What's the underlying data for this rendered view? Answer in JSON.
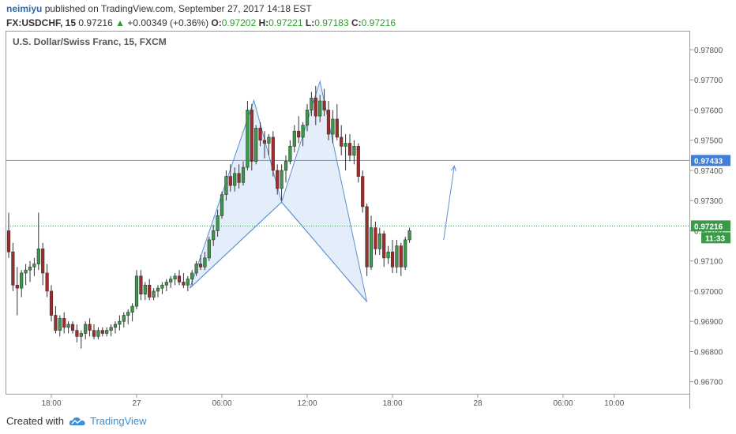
{
  "header": {
    "author": "neimiyu",
    "published_text": "published on TradingView.com, September 27, 2017 14:18 EST",
    "symbol": "FX:USDCHF, 15",
    "last_price": "0.97216",
    "change": "+0.00349 (+0.36%)",
    "o_label": "O:",
    "o_value": "0.97202",
    "h_label": "H:",
    "h_value": "0.97221",
    "l_label": "L:",
    "l_value": "0.97183",
    "c_label": "C:",
    "c_value": "0.97216"
  },
  "footer": {
    "created_with": "Created with",
    "brand": "TradingView"
  },
  "colors": {
    "up": "#3a9a4a",
    "down": "#a52a2a",
    "pattern_fill": "#dbe8f8",
    "pattern_stroke": "#5b8fd4",
    "level_line": "#5b8fd4",
    "price_badge": "#3a9a4a",
    "level_badge": "#3f7fd9"
  },
  "chart_data": {
    "type": "candlestick",
    "title": "U.S. Dollar/Swiss Franc, 15, FXCM",
    "ylim": [
      0.9666,
      0.9786
    ],
    "y_ticks": [
      "0.97800",
      "0.97700",
      "0.97600",
      "0.97500",
      "0.97400",
      "0.97300",
      "0.97200",
      "0.97100",
      "0.97000",
      "0.96900",
      "0.96800",
      "0.96700"
    ],
    "x_ticks": [
      "18:00",
      "27",
      "06:00",
      "12:00",
      "18:00",
      "28",
      "06:00",
      "10:00"
    ],
    "x_tick_bar_index": [
      10,
      30,
      50,
      70,
      90,
      110,
      130,
      142
    ],
    "resistance_level": 0.97433,
    "resistance_label": "0.97433",
    "last_price": 0.97216,
    "last_price_label": "0.97216",
    "countdown": "11:33",
    "harmonic_pattern": [
      {
        "bar": 42.5,
        "price": 0.9701
      },
      {
        "bar": 57.5,
        "price": 0.97632
      },
      {
        "bar": 64,
        "price": 0.97295
      },
      {
        "bar": 73,
        "price": 0.97695
      },
      {
        "bar": 84,
        "price": 0.96965
      }
    ],
    "projection_arrow": {
      "from": {
        "bar": 102,
        "price": 0.9717
      },
      "to": {
        "bar": 104.5,
        "price": 0.97415
      }
    },
    "candles": [
      [
        0.972,
        0.9726,
        0.9711,
        0.9713
      ],
      [
        0.9713,
        0.9716,
        0.97,
        0.9702
      ],
      [
        0.9702,
        0.9708,
        0.9692,
        0.9701
      ],
      [
        0.9701,
        0.9707,
        0.9698,
        0.9706
      ],
      [
        0.9706,
        0.9709,
        0.9702,
        0.9707
      ],
      [
        0.9707,
        0.971,
        0.9703,
        0.9708
      ],
      [
        0.9708,
        0.9711,
        0.9705,
        0.9709
      ],
      [
        0.9709,
        0.9726,
        0.9707,
        0.9714
      ],
      [
        0.9714,
        0.9716,
        0.9702,
        0.9706
      ],
      [
        0.9706,
        0.9709,
        0.9698,
        0.97
      ],
      [
        0.97,
        0.9702,
        0.969,
        0.9692
      ],
      [
        0.9692,
        0.9695,
        0.9686,
        0.9687
      ],
      [
        0.9687,
        0.9692,
        0.9685,
        0.9691
      ],
      [
        0.9691,
        0.9693,
        0.9686,
        0.9688
      ],
      [
        0.9688,
        0.969,
        0.9686,
        0.9689
      ],
      [
        0.9689,
        0.969,
        0.9686,
        0.9687
      ],
      [
        0.9687,
        0.9689,
        0.9683,
        0.9685
      ],
      [
        0.9685,
        0.9687,
        0.9681,
        0.9686
      ],
      [
        0.9686,
        0.969,
        0.9684,
        0.9689
      ],
      [
        0.9689,
        0.9691,
        0.9685,
        0.9687
      ],
      [
        0.9687,
        0.9689,
        0.9684,
        0.9685
      ],
      [
        0.9685,
        0.9688,
        0.9684,
        0.9687
      ],
      [
        0.9687,
        0.9688,
        0.9685,
        0.9686
      ],
      [
        0.9686,
        0.9688,
        0.9685,
        0.9687
      ],
      [
        0.9687,
        0.9689,
        0.9685,
        0.9688
      ],
      [
        0.9688,
        0.969,
        0.9686,
        0.9689
      ],
      [
        0.9689,
        0.9692,
        0.9687,
        0.969
      ],
      [
        0.969,
        0.9693,
        0.9688,
        0.9692
      ],
      [
        0.9692,
        0.9694,
        0.9689,
        0.9693
      ],
      [
        0.9693,
        0.9696,
        0.969,
        0.9695
      ],
      [
        0.9695,
        0.9707,
        0.9694,
        0.9705
      ],
      [
        0.9705,
        0.9707,
        0.9697,
        0.9699
      ],
      [
        0.9699,
        0.9703,
        0.9697,
        0.9702
      ],
      [
        0.9702,
        0.9704,
        0.9697,
        0.9698
      ],
      [
        0.9698,
        0.9701,
        0.9697,
        0.97
      ],
      [
        0.97,
        0.9702,
        0.9698,
        0.9701
      ],
      [
        0.9701,
        0.9703,
        0.9699,
        0.9702
      ],
      [
        0.9702,
        0.9704,
        0.97,
        0.9703
      ],
      [
        0.9703,
        0.9705,
        0.9701,
        0.9704
      ],
      [
        0.9704,
        0.9706,
        0.9702,
        0.9705
      ],
      [
        0.9705,
        0.9707,
        0.9702,
        0.9703
      ],
      [
        0.9703,
        0.9706,
        0.9701,
        0.9702
      ],
      [
        0.9702,
        0.9705,
        0.97,
        0.9704
      ],
      [
        0.9704,
        0.9707,
        0.9702,
        0.9706
      ],
      [
        0.9706,
        0.971,
        0.9705,
        0.9709
      ],
      [
        0.9709,
        0.9712,
        0.9707,
        0.9708
      ],
      [
        0.9708,
        0.9713,
        0.9707,
        0.9711
      ],
      [
        0.9711,
        0.9718,
        0.971,
        0.9717
      ],
      [
        0.9717,
        0.9722,
        0.9715,
        0.972
      ],
      [
        0.972,
        0.9727,
        0.9718,
        0.9725
      ],
      [
        0.9725,
        0.9733,
        0.9724,
        0.9732
      ],
      [
        0.9732,
        0.974,
        0.973,
        0.9738
      ],
      [
        0.9738,
        0.9742,
        0.9733,
        0.9735
      ],
      [
        0.9735,
        0.9741,
        0.9733,
        0.9739
      ],
      [
        0.9739,
        0.9742,
        0.9734,
        0.9736
      ],
      [
        0.9736,
        0.9743,
        0.9735,
        0.9741
      ],
      [
        0.9741,
        0.9763,
        0.974,
        0.976
      ],
      [
        0.976,
        0.9762,
        0.974,
        0.9743
      ],
      [
        0.9743,
        0.9755,
        0.9742,
        0.9754
      ],
      [
        0.9754,
        0.9756,
        0.9748,
        0.975
      ],
      [
        0.975,
        0.9753,
        0.9744,
        0.9749
      ],
      [
        0.9749,
        0.9752,
        0.9745,
        0.9751
      ],
      [
        0.9751,
        0.9753,
        0.9738,
        0.974
      ],
      [
        0.974,
        0.9742,
        0.9732,
        0.9734
      ],
      [
        0.9734,
        0.9742,
        0.973,
        0.974
      ],
      [
        0.974,
        0.9745,
        0.9736,
        0.9743
      ],
      [
        0.9743,
        0.975,
        0.9742,
        0.9748
      ],
      [
        0.9748,
        0.9755,
        0.9746,
        0.9753
      ],
      [
        0.9753,
        0.9758,
        0.9749,
        0.9751
      ],
      [
        0.9751,
        0.9756,
        0.9748,
        0.9755
      ],
      [
        0.9755,
        0.9762,
        0.9753,
        0.976
      ],
      [
        0.976,
        0.9766,
        0.9758,
        0.9764
      ],
      [
        0.9764,
        0.9768,
        0.9755,
        0.9758
      ],
      [
        0.9758,
        0.9765,
        0.9756,
        0.9763
      ],
      [
        0.9763,
        0.9767,
        0.9758,
        0.976
      ],
      [
        0.976,
        0.9763,
        0.975,
        0.9752
      ],
      [
        0.9752,
        0.976,
        0.9749,
        0.9757
      ],
      [
        0.9757,
        0.9762,
        0.975,
        0.9751
      ],
      [
        0.9751,
        0.9755,
        0.9745,
        0.9748
      ],
      [
        0.9748,
        0.9752,
        0.974,
        0.9749
      ],
      [
        0.9749,
        0.9752,
        0.9743,
        0.9745
      ],
      [
        0.9745,
        0.975,
        0.9742,
        0.9748
      ],
      [
        0.9748,
        0.9749,
        0.9736,
        0.9738
      ],
      [
        0.9738,
        0.974,
        0.9726,
        0.9728
      ],
      [
        0.9728,
        0.9729,
        0.9705,
        0.9708
      ],
      [
        0.9708,
        0.9725,
        0.9707,
        0.9721
      ],
      [
        0.9721,
        0.9723,
        0.9712,
        0.9714
      ],
      [
        0.9714,
        0.9721,
        0.9712,
        0.9719
      ],
      [
        0.9719,
        0.972,
        0.9708,
        0.9711
      ],
      [
        0.9711,
        0.9715,
        0.9709,
        0.9713
      ],
      [
        0.9713,
        0.9717,
        0.9706,
        0.9708
      ],
      [
        0.9708,
        0.9717,
        0.9706,
        0.9715
      ],
      [
        0.9715,
        0.9716,
        0.9705,
        0.9708
      ],
      [
        0.9708,
        0.9718,
        0.9707,
        0.9717
      ],
      [
        0.9717,
        0.9721,
        0.9716,
        0.972
      ]
    ]
  }
}
